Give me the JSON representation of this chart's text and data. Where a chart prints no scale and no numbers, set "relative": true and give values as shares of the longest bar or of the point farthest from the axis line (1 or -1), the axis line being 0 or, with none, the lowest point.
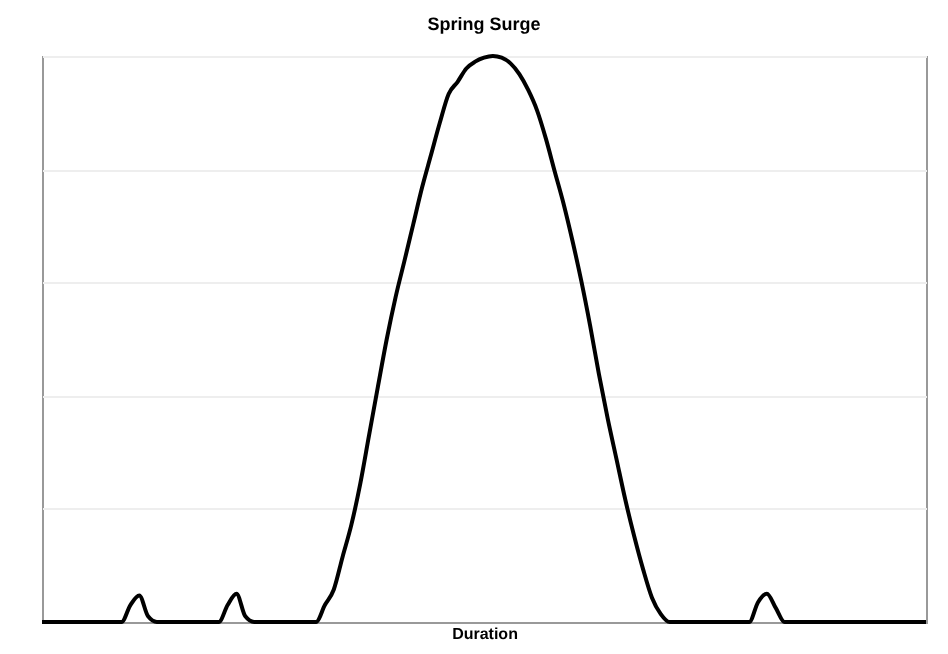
{
  "chart_data": {
    "type": "line",
    "title": "Spring Surge",
    "xlabel": "Duration",
    "relative": true,
    "grid": "y",
    "legend": false,
    "categories": [
      null,
      null,
      null,
      null,
      null,
      null,
      null,
      null,
      null,
      null,
      null,
      null,
      null,
      null,
      null,
      null,
      null,
      null,
      null,
      null,
      null,
      null,
      null,
      null,
      null,
      null,
      null,
      null,
      null,
      null,
      null,
      null,
      null,
      null,
      null,
      null,
      null,
      null,
      null,
      null,
      null,
      null,
      null,
      null,
      null,
      null,
      null,
      null,
      null,
      null,
      null,
      null,
      null,
      null,
      null,
      null,
      null,
      null,
      null,
      null,
      null,
      null,
      null,
      null,
      null,
      null,
      null,
      null,
      null,
      null,
      null,
      null,
      null,
      null,
      null,
      null,
      null,
      null,
      null,
      null,
      null,
      null,
      null,
      null,
      null,
      null,
      null,
      null,
      null,
      null,
      null,
      null,
      null,
      null,
      null,
      null,
      null,
      null,
      null,
      null,
      null
    ],
    "series": [
      {
        "color": "#000000",
        "values": [
          0,
          0,
          0,
          0,
          0,
          0,
          0,
          0,
          0,
          0,
          0.03,
          0.047,
          0.01,
          0,
          0,
          0,
          0,
          0,
          0,
          0,
          0,
          0.03,
          0.05,
          0.01,
          0,
          0,
          0,
          0,
          0,
          0,
          0,
          0,
          0.03,
          0.057,
          0.115,
          0.172,
          0.244,
          0.33,
          0.416,
          0.5,
          0.574,
          0.638,
          0.703,
          0.768,
          0.825,
          0.882,
          0.933,
          0.954,
          0.978,
          0.99,
          0.997,
          1,
          0.997,
          0.987,
          0.968,
          0.94,
          0.904,
          0.854,
          0.796,
          0.739,
          0.674,
          0.603,
          0.524,
          0.438,
          0.359,
          0.287,
          0.215,
          0.151,
          0.093,
          0.043,
          0.014,
          0,
          0,
          0,
          0,
          0,
          0,
          0,
          0,
          0,
          0,
          0.035,
          0.05,
          0.025,
          0,
          0,
          0,
          0,
          0,
          0,
          0,
          0,
          0,
          0,
          0,
          0,
          0,
          0,
          0,
          0,
          0
        ]
      }
    ]
  }
}
